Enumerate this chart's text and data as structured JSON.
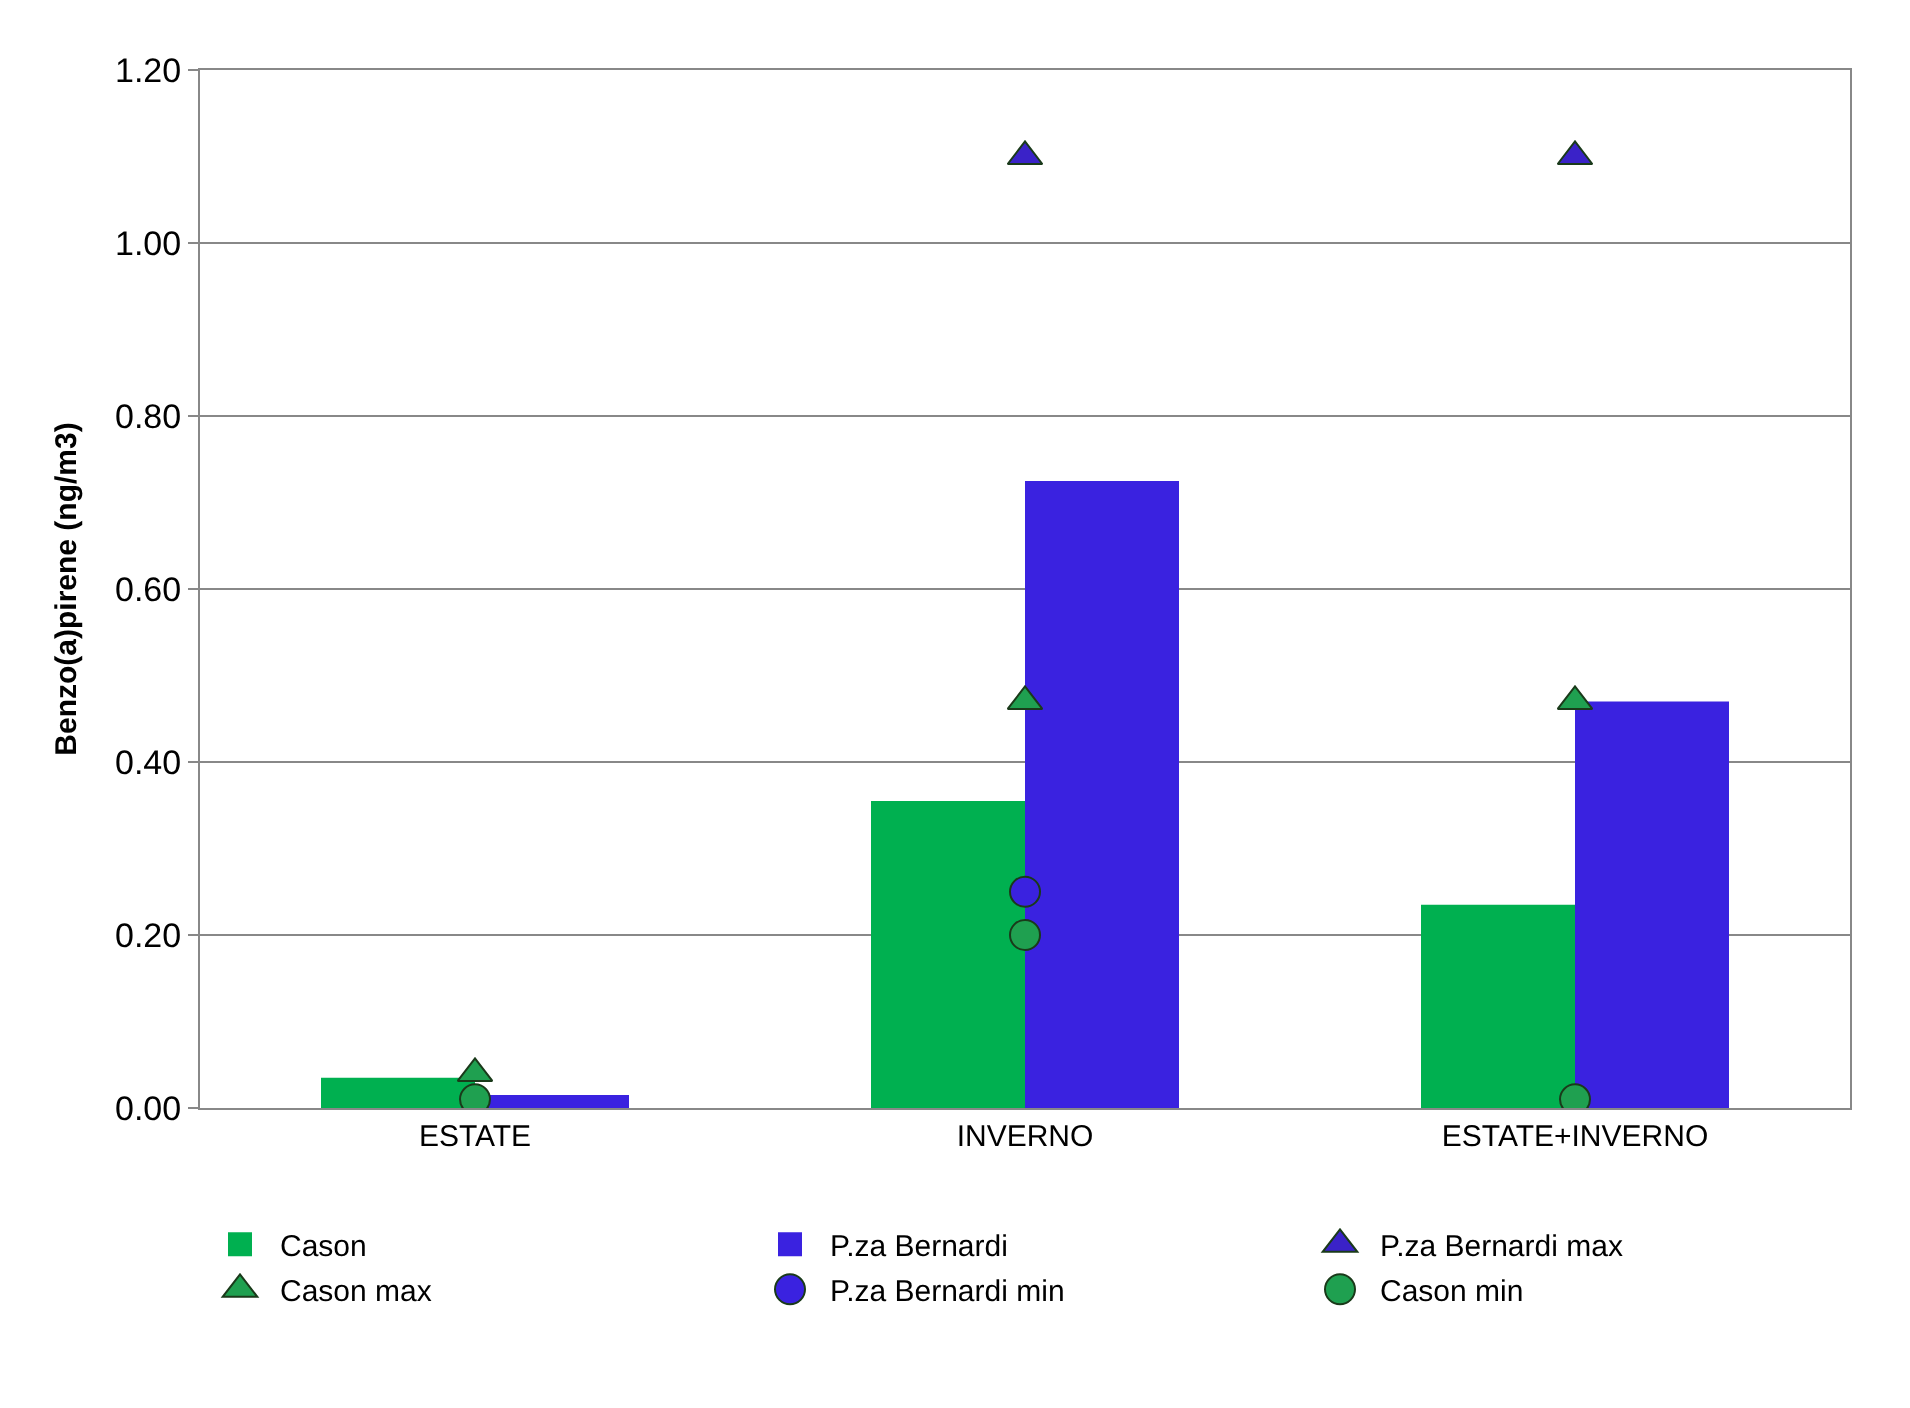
{
  "chart_data": {
    "type": "bar",
    "ylabel": "Benzo(a)pirene (ng/m3)",
    "categories": [
      "ESTATE",
      "INVERNO",
      "ESTATE+INVERNO"
    ],
    "series": [
      {
        "name": "Cason",
        "color": "#00b050",
        "values": [
          0.035,
          0.355,
          0.235
        ]
      },
      {
        "name": "P.za Bernardi",
        "color": "#3a22e0",
        "values": [
          0.015,
          0.725,
          0.47
        ]
      },
      {
        "name": "P.za Bernardi max",
        "type": "scatter",
        "marker": "triangle",
        "color": "#3a22c8",
        "values": [
          null,
          1.1,
          1.1
        ]
      },
      {
        "name": "Cason max",
        "type": "scatter",
        "marker": "triangle",
        "color": "#1fa050",
        "values": [
          0.04,
          0.47,
          0.47
        ]
      },
      {
        "name": "P.za Bernardi min",
        "type": "scatter",
        "marker": "circle",
        "color": "#3a22e0",
        "values": [
          null,
          0.25,
          null
        ]
      },
      {
        "name": "Cason min",
        "type": "scatter",
        "marker": "circle",
        "color": "#1fa050",
        "values": [
          0.01,
          0.2,
          0.01
        ]
      }
    ],
    "ylim": [
      0,
      1.2
    ],
    "yticks": [
      {
        "value": 0,
        "label": "0.00"
      },
      {
        "value": 0.2,
        "label": "0.20"
      },
      {
        "value": 0.4,
        "label": "0.40"
      },
      {
        "value": 0.6,
        "label": "0.60"
      },
      {
        "value": 0.8,
        "label": "0.80"
      },
      {
        "value": 1.0,
        "label": "1.00"
      },
      {
        "value": 1.2,
        "label": "1.20"
      }
    ],
    "grid": "y",
    "legend": "bottom"
  }
}
